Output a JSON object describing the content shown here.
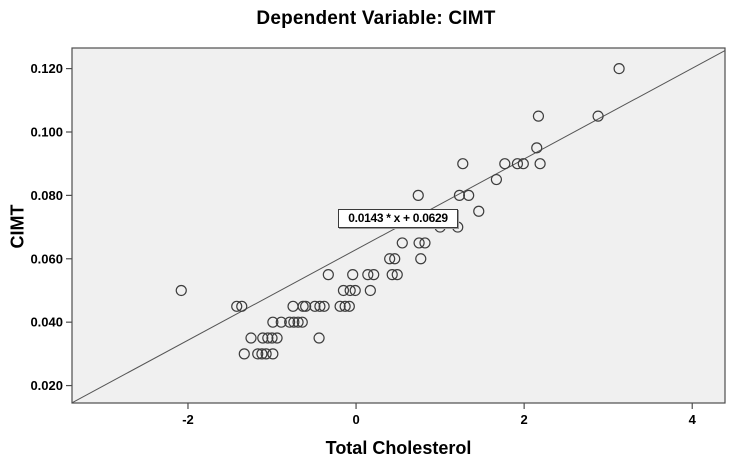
{
  "title": "Dependent Variable: CIMT",
  "axes": {
    "x": {
      "label": "Total Cholesterol",
      "tick_labels": [
        "-2",
        "0",
        "2",
        "4"
      ]
    },
    "y": {
      "label": "CIMT",
      "tick_labels": [
        "0.120",
        "0.100",
        "0.080",
        "0.060",
        "0.040",
        "0.020"
      ]
    }
  },
  "annotation": {
    "label": "0.0143 * x + 0.0629"
  },
  "colors": {
    "plot_background": "#f0f0f0",
    "frame": "#4d4d4d",
    "marker_stroke": "#3d3d3d",
    "fit_line": "#555555",
    "tick": "#4d4d4d",
    "text": "#000000",
    "annotation_background": "#ffffff",
    "annotation_border": "#3a3a3a"
  },
  "chart_data": {
    "type": "scatter",
    "title": "Dependent Variable: CIMT",
    "xlabel": "Total Cholesterol",
    "ylabel": "CIMT",
    "xlim": [
      -3.38,
      4.39
    ],
    "ylim": [
      0.0145,
      0.1265
    ],
    "x_ticks": [
      -2,
      0,
      2,
      4
    ],
    "y_ticks": [
      0.12,
      0.1,
      0.08,
      0.06,
      0.04,
      0.02
    ],
    "grid": false,
    "legend": "none",
    "marker": "open-circle",
    "fit_line": {
      "slope": 0.0143,
      "intercept": 0.0629,
      "equation_label": "0.0143 * x + 0.0629"
    },
    "points": [
      [
        3.13,
        0.12
      ],
      [
        2.17,
        0.105
      ],
      [
        2.88,
        0.105
      ],
      [
        2.15,
        0.095
      ],
      [
        1.27,
        0.09
      ],
      [
        1.77,
        0.09
      ],
      [
        1.92,
        0.09
      ],
      [
        1.99,
        0.09
      ],
      [
        2.19,
        0.09
      ],
      [
        1.67,
        0.085
      ],
      [
        0.74,
        0.08
      ],
      [
        1.23,
        0.08
      ],
      [
        1.34,
        0.08
      ],
      [
        1.46,
        0.075
      ],
      [
        1.0,
        0.07
      ],
      [
        1.21,
        0.07
      ],
      [
        0.55,
        0.065
      ],
      [
        0.75,
        0.065
      ],
      [
        0.82,
        0.065
      ],
      [
        0.4,
        0.06
      ],
      [
        0.46,
        0.06
      ],
      [
        0.77,
        0.06
      ],
      [
        -0.33,
        0.055
      ],
      [
        -0.04,
        0.055
      ],
      [
        0.14,
        0.055
      ],
      [
        0.21,
        0.055
      ],
      [
        0.43,
        0.055
      ],
      [
        0.49,
        0.055
      ],
      [
        -2.08,
        0.05
      ],
      [
        -0.15,
        0.05
      ],
      [
        -0.07,
        0.05
      ],
      [
        -0.01,
        0.05
      ],
      [
        0.17,
        0.05
      ],
      [
        -1.42,
        0.045
      ],
      [
        -1.36,
        0.045
      ],
      [
        -0.75,
        0.045
      ],
      [
        -0.63,
        0.045
      ],
      [
        -0.6,
        0.045
      ],
      [
        -0.49,
        0.045
      ],
      [
        -0.43,
        0.045
      ],
      [
        -0.38,
        0.045
      ],
      [
        -0.19,
        0.045
      ],
      [
        -0.13,
        0.045
      ],
      [
        -0.08,
        0.045
      ],
      [
        -0.99,
        0.04
      ],
      [
        -0.89,
        0.04
      ],
      [
        -0.79,
        0.04
      ],
      [
        -0.74,
        0.04
      ],
      [
        -0.69,
        0.04
      ],
      [
        -0.64,
        0.04
      ],
      [
        -1.25,
        0.035
      ],
      [
        -1.11,
        0.035
      ],
      [
        -1.05,
        0.035
      ],
      [
        -1.0,
        0.035
      ],
      [
        -0.94,
        0.035
      ],
      [
        -0.44,
        0.035
      ],
      [
        -1.33,
        0.03
      ],
      [
        -1.17,
        0.03
      ],
      [
        -1.12,
        0.03
      ],
      [
        -1.07,
        0.03
      ],
      [
        -0.99,
        0.03
      ]
    ]
  }
}
